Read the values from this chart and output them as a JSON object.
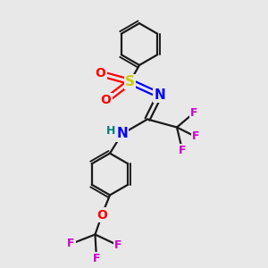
{
  "background_color": "#e8e8e8",
  "bond_color": "#1a1a1a",
  "colors": {
    "S": "#cccc00",
    "N": "#0000ff",
    "O": "#ff0000",
    "F": "#cc00cc",
    "H": "#008080",
    "C": "#1a1a1a"
  },
  "figsize": [
    3.0,
    3.0
  ],
  "dpi": 100
}
